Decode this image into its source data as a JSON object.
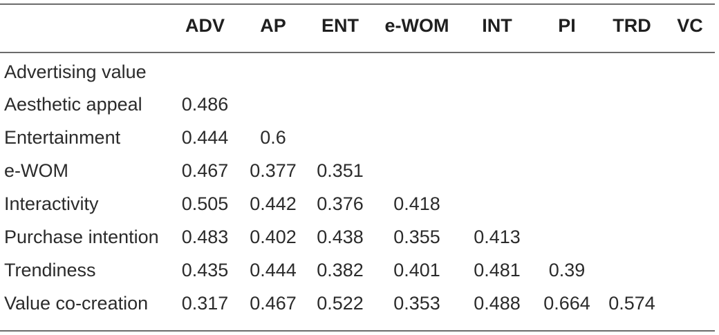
{
  "table": {
    "columns": [
      "ADV",
      "AP",
      "ENT",
      "e-WOM",
      "INT",
      "PI",
      "TRD",
      "VC"
    ],
    "rows": [
      {
        "label": "Advertising value",
        "values": [
          "",
          "",
          "",
          "",
          "",
          "",
          "",
          ""
        ]
      },
      {
        "label": "Aesthetic appeal",
        "values": [
          "0.486",
          "",
          "",
          "",
          "",
          "",
          "",
          ""
        ]
      },
      {
        "label": "Entertainment",
        "values": [
          "0.444",
          "0.6",
          "",
          "",
          "",
          "",
          "",
          ""
        ]
      },
      {
        "label": "e-WOM",
        "values": [
          "0.467",
          "0.377",
          "0.351",
          "",
          "",
          "",
          "",
          ""
        ]
      },
      {
        "label": "Interactivity",
        "values": [
          "0.505",
          "0.442",
          "0.376",
          "0.418",
          "",
          "",
          "",
          ""
        ]
      },
      {
        "label": "Purchase intention",
        "values": [
          "0.483",
          "0.402",
          "0.438",
          "0.355",
          "0.413",
          "",
          "",
          ""
        ]
      },
      {
        "label": "Trendiness",
        "values": [
          "0.435",
          "0.444",
          "0.382",
          "0.401",
          "0.481",
          "0.39",
          "",
          ""
        ]
      },
      {
        "label": "Value co-creation",
        "values": [
          "0.317",
          "0.467",
          "0.522",
          "0.353",
          "0.488",
          "0.664",
          "0.574",
          ""
        ]
      }
    ]
  }
}
